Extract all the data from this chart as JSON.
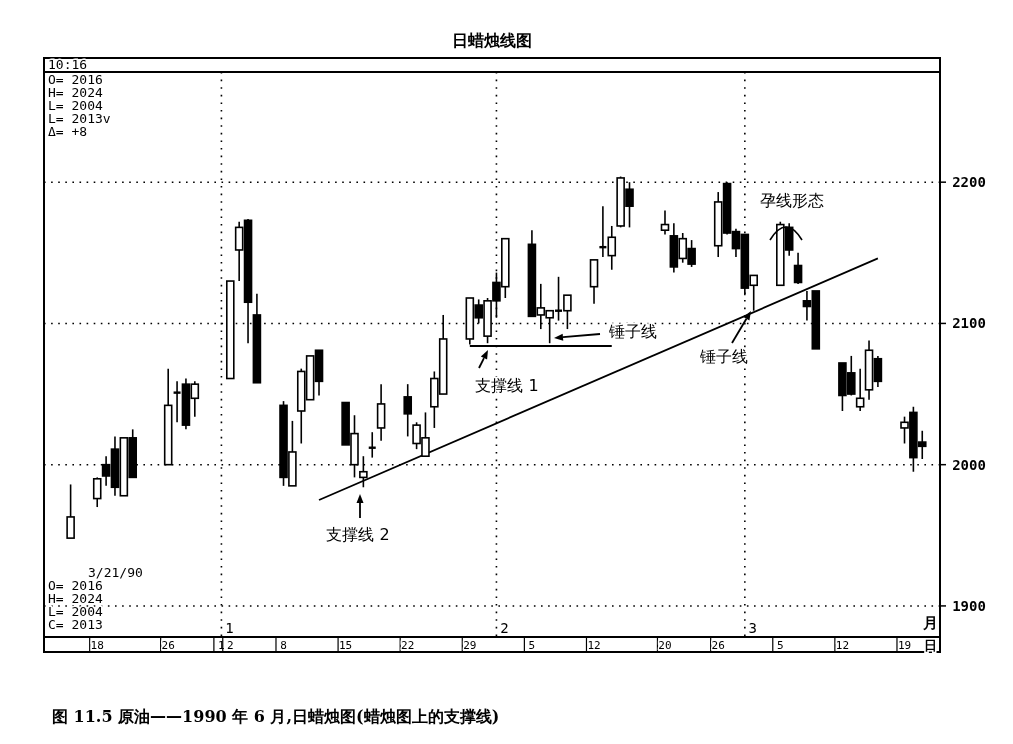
{
  "chart_data": {
    "type": "candlestick",
    "title": "日蜡烛线图",
    "xlim": [
      "1989-12-12",
      "1990-03-23"
    ],
    "ylim": [
      1878,
      2278
    ],
    "yticks": [
      1900,
      2000,
      2100,
      2200
    ],
    "xticks": [
      {
        "value": "1989-12-18",
        "label": "18"
      },
      {
        "value": "1989-12-26",
        "label": "26"
      },
      {
        "value": "1990-01-01",
        "label": "1"
      },
      {
        "value": "1990-01-02",
        "label": "2"
      },
      {
        "value": "1990-01-08",
        "label": "8"
      },
      {
        "value": "1990-01-15",
        "label": "15"
      },
      {
        "value": "1990-01-22",
        "label": "22"
      },
      {
        "value": "1990-01-29",
        "label": "29"
      },
      {
        "value": "1990-02-05",
        "label": "5"
      },
      {
        "value": "1990-02-12",
        "label": "12"
      },
      {
        "value": "1990-02-20",
        "label": "20"
      },
      {
        "value": "1990-02-26",
        "label": "26"
      },
      {
        "value": "1990-03-05",
        "label": "5"
      },
      {
        "value": "1990-03-12",
        "label": "12"
      },
      {
        "value": "1990-03-19",
        "label": "19"
      }
    ],
    "grid": "y",
    "ref_lines": [
      {
        "axis": "x",
        "value": "1990-01-01",
        "label": "1",
        "line_style": "dotted"
      },
      {
        "axis": "x",
        "value": "1990-02-01",
        "label": "2",
        "line_style": "dotted"
      },
      {
        "axis": "x",
        "value": "1990-03-01",
        "label": "3",
        "line_style": "dotted"
      }
    ],
    "series": [
      {
        "color": "#000000",
        "x": [
          "1989-12-15",
          "1989-12-18",
          "1989-12-19",
          "1989-12-20",
          "1989-12-21",
          "1989-12-22",
          "1989-12-26",
          "1989-12-27",
          "1989-12-28",
          "1989-12-29",
          "1990-01-02",
          "1990-01-03",
          "1990-01-04",
          "1990-01-05",
          "1990-01-08",
          "1990-01-09",
          "1990-01-10",
          "1990-01-11",
          "1990-01-12",
          "1990-01-15",
          "1990-01-16",
          "1990-01-17",
          "1990-01-18",
          "1990-01-19",
          "1990-01-22",
          "1990-01-23",
          "1990-01-24",
          "1990-01-25",
          "1990-01-26",
          "1990-01-29",
          "1990-01-30",
          "1990-01-31",
          "1990-02-01",
          "1990-02-02",
          "1990-02-05",
          "1990-02-06",
          "1990-02-07",
          "1990-02-08",
          "1990-02-09",
          "1990-02-12",
          "1990-02-13",
          "1990-02-14",
          "1990-02-15",
          "1990-02-16",
          "1990-02-20",
          "1990-02-21",
          "1990-02-22",
          "1990-02-23",
          "1990-02-26",
          "1990-02-27",
          "1990-02-28",
          "1990-03-01",
          "1990-03-02",
          "1990-03-05",
          "1990-03-06",
          "1990-03-07",
          "1990-03-08",
          "1990-03-09",
          "1990-03-12",
          "1990-03-13",
          "1990-03-14",
          "1990-03-15",
          "1990-03-16",
          "1990-03-19",
          "1990-03-20",
          "1990-03-21"
        ],
        "ohlc": [
          [
            1948,
            1986,
            1948,
            1963
          ],
          [
            1976,
            1991,
            1970,
            1990
          ],
          [
            2000,
            2006,
            1985,
            1992
          ],
          [
            2011,
            2020,
            1978,
            1984
          ],
          [
            1978,
            2019,
            1978,
            2019
          ],
          [
            2019,
            2025,
            1991,
            1991
          ],
          [
            2000,
            2068,
            2000,
            2042
          ],
          [
            2051,
            2059,
            2030,
            2051
          ],
          [
            2057,
            2061,
            2025,
            2028
          ],
          [
            2047,
            2059,
            2034,
            2057
          ],
          [
            2061,
            2130,
            2061,
            2130
          ],
          [
            2152,
            2172,
            2130,
            2168
          ],
          [
            2173,
            2174,
            2086,
            2115
          ],
          [
            2106,
            2121,
            2058,
            2058
          ],
          [
            2042,
            2045,
            1985,
            1991
          ],
          [
            1985,
            2031,
            1985,
            2009
          ],
          [
            2038,
            2068,
            2015,
            2066
          ],
          [
            2046,
            2077,
            2046,
            2077
          ],
          [
            2081,
            2081,
            2049,
            2059
          ],
          [
            2044,
            2044,
            2014,
            2014
          ],
          [
            2000,
            2035,
            1991,
            2022
          ],
          [
            1991,
            2006,
            1984,
            1995
          ],
          [
            2012,
            2023,
            2005,
            2012
          ],
          [
            2026,
            2057,
            2017,
            2043
          ],
          [
            2048,
            2057,
            2020,
            2036
          ],
          [
            2015,
            2030,
            2011,
            2028
          ],
          [
            2006,
            2037,
            2006,
            2019
          ],
          [
            2041,
            2066,
            2026,
            2061
          ],
          [
            2050,
            2106,
            2050,
            2089
          ],
          [
            2089,
            2118,
            2085,
            2118
          ],
          [
            2113,
            2117,
            2100,
            2104
          ],
          [
            2091,
            2118,
            2086,
            2116
          ],
          [
            2129,
            2136,
            2104,
            2116
          ],
          [
            2126,
            2160,
            2118,
            2160
          ],
          [
            2156,
            2166,
            2105,
            2105
          ],
          [
            2106,
            2128,
            2096,
            2111
          ],
          [
            2104,
            2109,
            2086,
            2109
          ],
          [
            2109,
            2133,
            2102,
            2109
          ],
          [
            2109,
            2120,
            2096,
            2120
          ],
          [
            2126,
            2145,
            2114,
            2145
          ],
          [
            2154,
            2183,
            2147,
            2154
          ],
          [
            2148,
            2169,
            2138,
            2161
          ],
          [
            2169,
            2204,
            2168,
            2203
          ],
          [
            2195,
            2200,
            2168,
            2183
          ],
          [
            2166,
            2180,
            2163,
            2170
          ],
          [
            2162,
            2171,
            2136,
            2140
          ],
          [
            2146,
            2164,
            2143,
            2160
          ],
          [
            2153,
            2159,
            2140,
            2142
          ],
          [
            2155,
            2193,
            2147,
            2186
          ],
          [
            2199,
            2200,
            2163,
            2164
          ],
          [
            2165,
            2167,
            2147,
            2153
          ],
          [
            2163,
            2163,
            2120,
            2125
          ],
          [
            2127,
            2134,
            2109,
            2134
          ],
          [
            2127,
            2172,
            2127,
            2170
          ],
          [
            2168,
            2171,
            2148,
            2152
          ],
          [
            2141,
            2150,
            2128,
            2129
          ],
          [
            2116,
            2123,
            2102,
            2112
          ],
          [
            2123,
            2123,
            2082,
            2082
          ],
          [
            2072,
            2072,
            2038,
            2049
          ],
          [
            2065,
            2077,
            2049,
            2050
          ],
          [
            2041,
            2068,
            2038,
            2047
          ],
          [
            2053,
            2088,
            2046,
            2081
          ],
          [
            2075,
            2077,
            2055,
            2059
          ],
          [
            2026,
            2034,
            2015,
            2030
          ],
          [
            2037,
            2041,
            1995,
            2005
          ],
          [
            2016,
            2024,
            2004,
            2013
          ]
        ]
      },
      {
        "type": "line",
        "color": "#000000",
        "x": [
          "1990-01-12",
          "1990-03-16"
        ],
        "values": [
          1975,
          2146
        ]
      },
      {
        "type": "line",
        "color": "#000000",
        "x": [
          "1990-01-29",
          "1990-02-14"
        ],
        "values": [
          2084,
          2084
        ]
      }
    ],
    "annotations": [
      "10:16",
      "O= 2016",
      "H= 2024",
      "L= 2004",
      "L= 2013v",
      "Δ=    +8",
      "3/21/90",
      "O= 2016",
      "H= 2024",
      "L= 2004",
      "C= 2013",
      "月",
      "日",
      "图 11.5  原油——1990 年 6 月,日蜡烛图(蜡烛图上的支撑线)",
      "支撑线 1",
      "支撑线 2",
      "锤子线",
      "锤子线",
      "孕线形态"
    ]
  }
}
